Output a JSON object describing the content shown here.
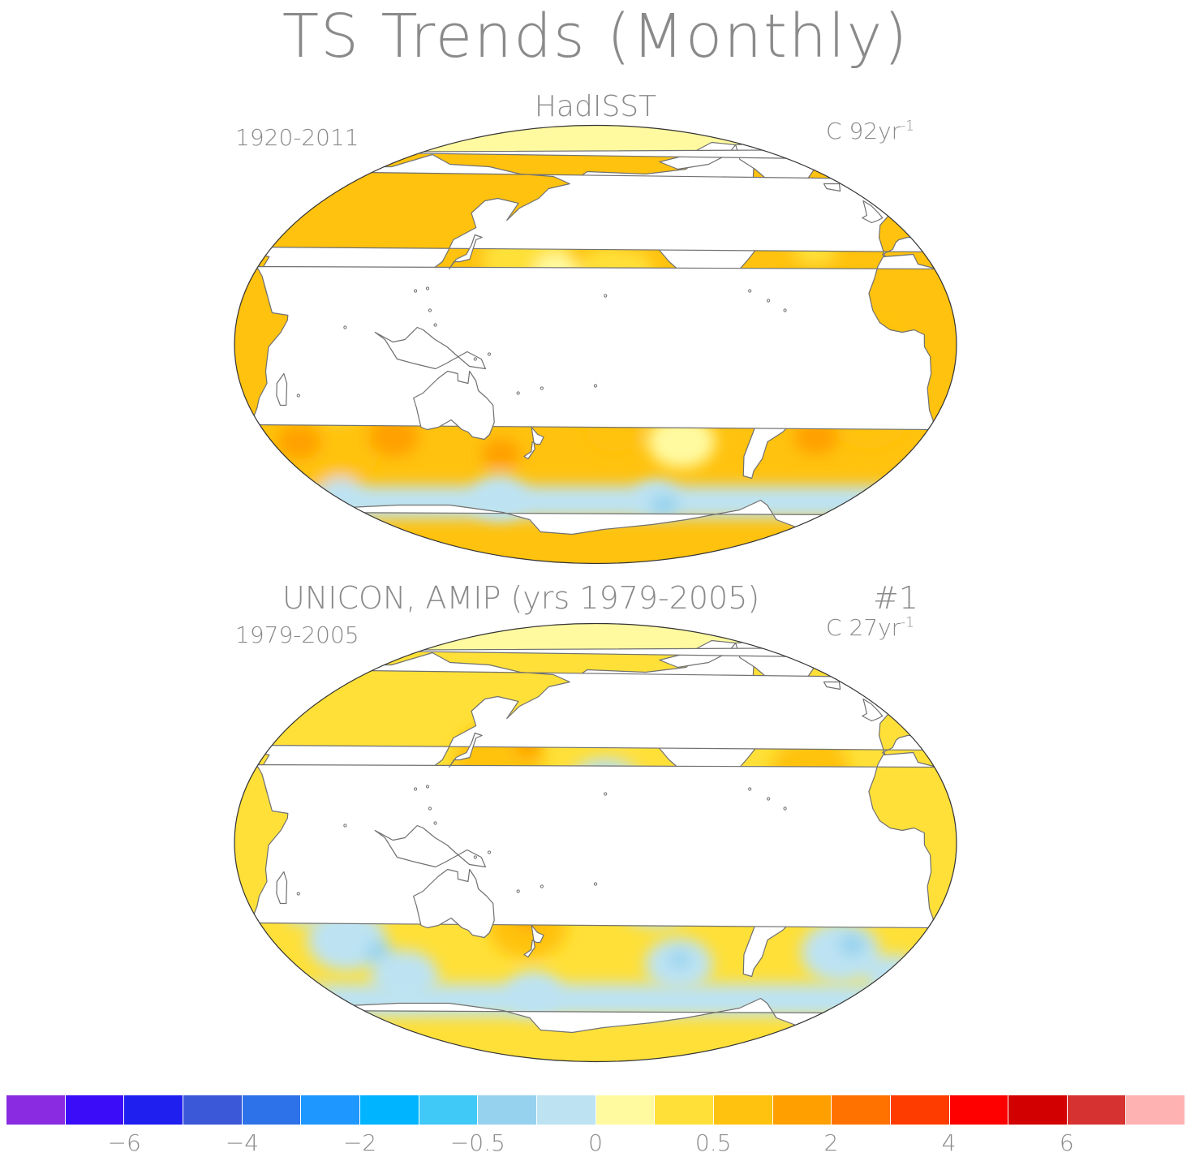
{
  "title": "TS Trends (Monthly)",
  "panels": [
    {
      "title": "HadISST",
      "period": "1920-2011",
      "units": "C 92yr",
      "units_exp": "-1",
      "run": "",
      "fields": [
        {
          "cat": "orange",
          "lon": 80,
          "lat": -15,
          "r": 22
        },
        {
          "cat": "orange",
          "lon": 65,
          "lat": -40,
          "r": 20
        },
        {
          "cat": "dark-orange",
          "lon": 50,
          "lat": -40,
          "r": 8
        },
        {
          "cat": "dark-orange",
          "lon": 100,
          "lat": -38,
          "r": 9
        },
        {
          "cat": "dark-orange",
          "lon": 155,
          "lat": -45,
          "r": 7
        },
        {
          "cat": "yellow",
          "lon": 75,
          "lat": -25,
          "r": 8
        },
        {
          "cat": "orange",
          "lon": 140,
          "lat": 28,
          "r": 14
        },
        {
          "cat": "yellow",
          "lon": 170,
          "lat": 35,
          "r": 16
        },
        {
          "cat": "pale-yellow",
          "lon": 185,
          "lat": 30,
          "r": 8
        },
        {
          "cat": "light-blue",
          "lon": 180,
          "lat": 18,
          "r": 6
        },
        {
          "cat": "light-blue",
          "lon": 200,
          "lat": 5,
          "r": 6
        },
        {
          "cat": "light-blue",
          "lon": 230,
          "lat": 2,
          "r": 5
        },
        {
          "cat": "yellow",
          "lon": 215,
          "lat": 28,
          "r": 14
        },
        {
          "cat": "orange",
          "lon": 225,
          "lat": 45,
          "r": 8
        },
        {
          "cat": "yellow",
          "lon": 200,
          "lat": -15,
          "r": 15
        },
        {
          "cat": "orange",
          "lon": 165,
          "lat": -5,
          "r": 10
        },
        {
          "cat": "orange",
          "lon": 215,
          "lat": -35,
          "r": 10
        },
        {
          "cat": "pale-yellow",
          "lon": 250,
          "lat": -40,
          "r": 12
        },
        {
          "cat": "light-blue",
          "lon": 245,
          "lat": -15,
          "r": 4
        },
        {
          "cat": "orange",
          "lon": 315,
          "lat": 25,
          "r": 12
        },
        {
          "cat": "yellow",
          "lon": 320,
          "lat": 40,
          "r": 8
        },
        {
          "cat": "light-blue",
          "lon": 305,
          "lat": 48,
          "r": 5
        },
        {
          "cat": "orange",
          "lon": 345,
          "lat": 60,
          "r": 6
        },
        {
          "cat": "orange",
          "lon": 340,
          "lat": 0,
          "r": 10
        },
        {
          "cat": "orange",
          "lon": 345,
          "lat": -30,
          "r": 14
        },
        {
          "cat": "dark-orange",
          "lon": 320,
          "lat": -38,
          "r": 8
        },
        {
          "cat": "orange",
          "lon": 20,
          "lat": 72,
          "r": 9
        },
        {
          "cat": "light-blue",
          "lon": 240,
          "lat": -63,
          "r": 8
        },
        {
          "cat": "light-blue",
          "lon": 150,
          "lat": -63,
          "r": 10
        },
        {
          "cat": "light-blue",
          "lon": 60,
          "lat": -62,
          "r": 8
        },
        {
          "cat": "sky-blue",
          "lon": 245,
          "lat": -66,
          "r": 5
        }
      ]
    },
    {
      "title": "UNICON, AMIP (yrs 1979-2005)",
      "period": "1979-2005",
      "units": "C 27yr",
      "units_exp": "-1",
      "run": "#1",
      "fields": [
        {
          "cat": "yellow",
          "lon": 75,
          "lat": -10,
          "r": 16
        },
        {
          "cat": "light-blue",
          "lon": 75,
          "lat": -40,
          "r": 14
        },
        {
          "cat": "sky-blue",
          "lon": 90,
          "lat": -45,
          "r": 5
        },
        {
          "cat": "light-blue",
          "lon": 100,
          "lat": -55,
          "r": 12
        },
        {
          "cat": "light-blue",
          "lon": 55,
          "lat": -28,
          "r": 6
        },
        {
          "cat": "orange",
          "lon": 155,
          "lat": 35,
          "r": 16
        },
        {
          "cat": "dark-orange",
          "lon": 170,
          "lat": 40,
          "r": 5
        },
        {
          "cat": "orange",
          "lon": 150,
          "lat": -12,
          "r": 12
        },
        {
          "cat": "orange",
          "lon": 170,
          "lat": -35,
          "r": 14
        },
        {
          "cat": "dark-orange",
          "lon": 170,
          "lat": -32,
          "r": 4
        },
        {
          "cat": "pale-yellow",
          "lon": 185,
          "lat": 10,
          "r": 10
        },
        {
          "cat": "light-blue",
          "lon": 210,
          "lat": 22,
          "r": 14
        },
        {
          "cat": "sky-blue",
          "lon": 210,
          "lat": 25,
          "r": 5
        },
        {
          "cat": "light-blue",
          "lon": 235,
          "lat": -20,
          "r": 16
        },
        {
          "cat": "sky-blue",
          "lon": 240,
          "lat": -25,
          "r": 6
        },
        {
          "cat": "light-blue",
          "lon": 250,
          "lat": -50,
          "r": 12
        },
        {
          "cat": "sky-blue",
          "lon": 250,
          "lat": -48,
          "r": 4
        },
        {
          "cat": "yellow",
          "lon": 225,
          "lat": 48,
          "r": 9
        },
        {
          "cat": "orange",
          "lon": 315,
          "lat": 30,
          "r": 14
        },
        {
          "cat": "orange",
          "lon": 335,
          "lat": 50,
          "r": 10
        },
        {
          "cat": "yellow",
          "lon": 345,
          "lat": 10,
          "r": 10
        },
        {
          "cat": "pale-yellow",
          "lon": 345,
          "lat": -20,
          "r": 10
        },
        {
          "cat": "light-blue",
          "lon": 335,
          "lat": -45,
          "r": 14
        },
        {
          "cat": "sky-blue",
          "lon": 340,
          "lat": -42,
          "r": 5
        },
        {
          "cat": "light-blue",
          "lon": 170,
          "lat": -62,
          "r": 10
        },
        {
          "cat": "light-blue",
          "lon": 10,
          "lat": -55,
          "r": 10
        },
        {
          "cat": "yellow",
          "lon": 35,
          "lat": -65,
          "r": 8
        }
      ]
    }
  ],
  "colorbar": {
    "colors": [
      "#8a2be2",
      "#3a0cf7",
      "#1f1ff0",
      "#3a58d8",
      "#2d72e8",
      "#1e98ff",
      "#00b4ff",
      "#40c8f6",
      "#96d2ee",
      "#bde3f3",
      "#fffaa0",
      "#ffe038",
      "#ffc20e",
      "#ffa000",
      "#ff7200",
      "#ff3c00",
      "#ff0000",
      "#d20000",
      "#d63232",
      "#ffb2b2"
    ],
    "tick_labels": [
      "-6",
      "-4",
      "-2",
      "-0.5",
      "0",
      "0.5",
      "2",
      "4",
      "6"
    ]
  },
  "palette": {
    "pale-yellow": "#fffaa0",
    "yellow": "#ffe038",
    "orange": "#ffc20e",
    "dark-orange": "#ffa000",
    "light-blue": "#bde3f3",
    "sky-blue": "#96d2ee",
    "land": "#ffffff",
    "coast": "#707070"
  }
}
